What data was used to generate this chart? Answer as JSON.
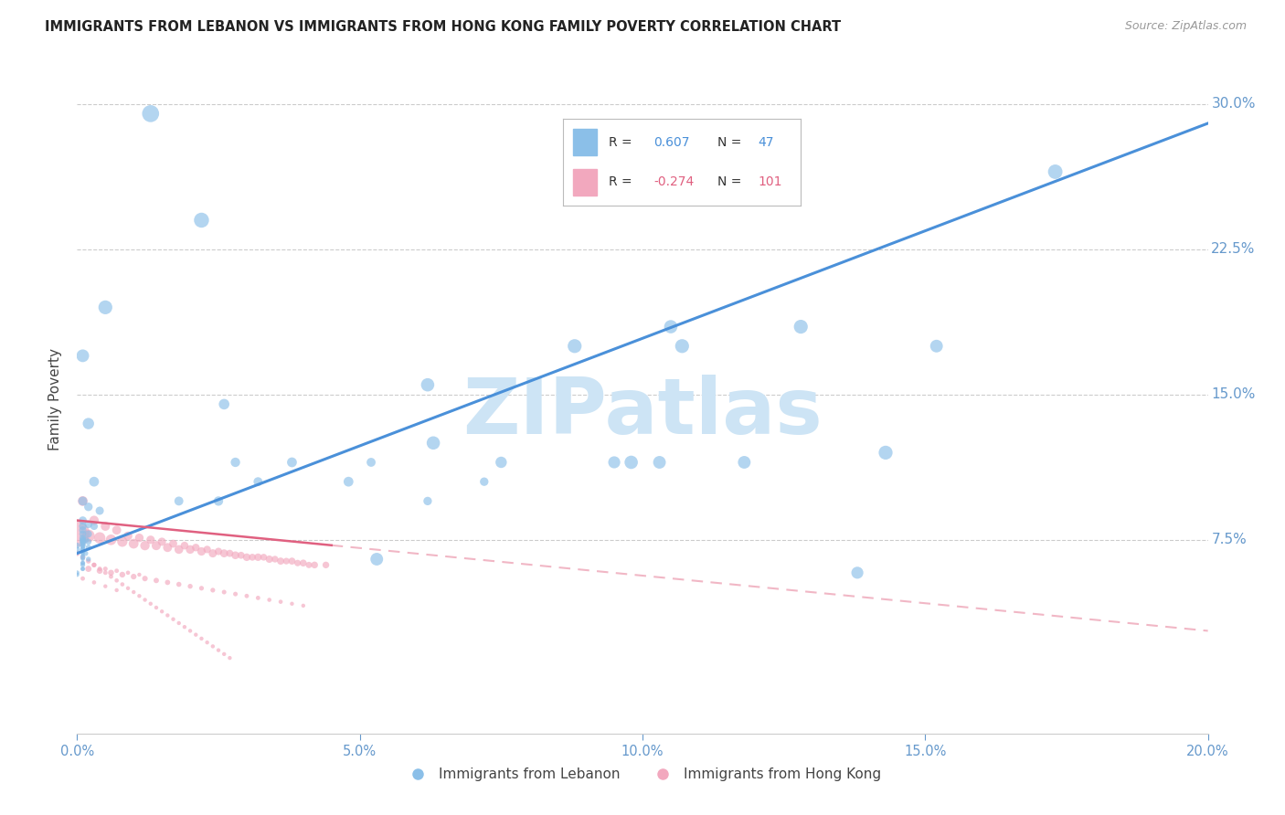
{
  "title": "IMMIGRANTS FROM LEBANON VS IMMIGRANTS FROM HONG KONG FAMILY POVERTY CORRELATION CHART",
  "source": "Source: ZipAtlas.com",
  "ylabel": "Family Poverty",
  "xlim": [
    0.0,
    0.2
  ],
  "ylim": [
    -0.025,
    0.32
  ],
  "legend_label1": "Immigrants from Lebanon",
  "legend_label2": "Immigrants from Hong Kong",
  "color_lebanon": "#8bbfe8",
  "color_hongkong": "#f2a8be",
  "color_line_lebanon": "#4a90d9",
  "color_line_hongkong": "#e06080",
  "watermark": "ZIPatlas",
  "watermark_color": "#cde4f5",
  "axis_label_color": "#6699cc",
  "ytick_vals": [
    0.075,
    0.15,
    0.225,
    0.3
  ],
  "ytick_labels": [
    "7.5%",
    "15.0%",
    "22.5%",
    "30.0%"
  ],
  "xtick_vals": [
    0.0,
    0.05,
    0.1,
    0.15,
    0.2
  ],
  "xtick_labels": [
    "0.0%",
    "5.0%",
    "10.0%",
    "15.0%",
    "20.0%"
  ],
  "blue_line": {
    "x0": 0.0,
    "y0": 0.068,
    "x1": 0.2,
    "y1": 0.29
  },
  "pink_line": {
    "x0": 0.0,
    "y0": 0.085,
    "x1": 0.2,
    "y1": 0.028
  },
  "pink_line_solid_end": 0.045,
  "lebanon_points": {
    "x": [
      0.013,
      0.022,
      0.005,
      0.001,
      0.002,
      0.003,
      0.001,
      0.002,
      0.004,
      0.001,
      0.002,
      0.001,
      0.003,
      0.001,
      0.002,
      0.001,
      0.001,
      0.001,
      0.0015,
      0.001,
      0.002,
      0.001,
      0.0,
      0.001,
      0.002,
      0.001,
      0.0,
      0.001,
      0.0015,
      0.001,
      0.002,
      0.001,
      0.001,
      0.001,
      0.0,
      0.0,
      0.001,
      0.001,
      0.001,
      0.001,
      0.001,
      0.001,
      0.001,
      0.001,
      0.001,
      0.001,
      0.001
    ],
    "y": [
      0.295,
      0.24,
      0.195,
      0.17,
      0.135,
      0.105,
      0.095,
      0.092,
      0.09,
      0.085,
      0.083,
      0.082,
      0.082,
      0.08,
      0.078,
      0.078,
      0.076,
      0.075,
      0.075,
      0.074,
      0.074,
      0.073,
      0.072,
      0.072,
      0.071,
      0.07,
      0.07,
      0.069,
      0.068,
      0.066,
      0.065,
      0.063,
      0.062,
      0.06,
      0.058,
      0.057,
      0.075,
      0.074,
      0.073,
      0.072,
      0.071,
      0.07,
      0.068,
      0.067,
      0.065,
      0.063,
      0.06
    ],
    "sizes": [
      180,
      140,
      120,
      100,
      80,
      60,
      50,
      45,
      42,
      40,
      38,
      36,
      35,
      34,
      32,
      30,
      28,
      27,
      26,
      25,
      24,
      23,
      22,
      21,
      20,
      20,
      19,
      18,
      17,
      16,
      15,
      14,
      14,
      13,
      13,
      12,
      14,
      13,
      12,
      11,
      11,
      10,
      10,
      10,
      10,
      10,
      10
    ]
  },
  "lebanon_isolated": {
    "x": [
      0.088,
      0.107,
      0.062,
      0.103,
      0.128,
      0.098,
      0.143,
      0.173,
      0.063,
      0.053,
      0.138,
      0.105,
      0.118,
      0.152,
      0.095,
      0.075,
      0.026,
      0.038,
      0.048,
      0.025,
      0.028,
      0.032,
      0.018,
      0.052,
      0.062,
      0.072
    ],
    "y": [
      0.175,
      0.175,
      0.155,
      0.115,
      0.185,
      0.115,
      0.12,
      0.265,
      0.125,
      0.065,
      0.058,
      0.185,
      0.115,
      0.175,
      0.115,
      0.115,
      0.145,
      0.115,
      0.105,
      0.095,
      0.115,
      0.105,
      0.095,
      0.115,
      0.095,
      0.105
    ],
    "sizes": [
      120,
      120,
      110,
      100,
      120,
      110,
      120,
      130,
      110,
      100,
      90,
      110,
      100,
      100,
      90,
      80,
      70,
      60,
      60,
      55,
      55,
      50,
      50,
      50,
      45,
      45
    ]
  },
  "hongkong_points": {
    "x": [
      0.0,
      0.002,
      0.004,
      0.006,
      0.008,
      0.01,
      0.012,
      0.014,
      0.016,
      0.018,
      0.02,
      0.022,
      0.024,
      0.026,
      0.028,
      0.03,
      0.032,
      0.034,
      0.036,
      0.038,
      0.04,
      0.042,
      0.044,
      0.001,
      0.003,
      0.005,
      0.007,
      0.009,
      0.011,
      0.013,
      0.015,
      0.017,
      0.019,
      0.021,
      0.023,
      0.025,
      0.027,
      0.029,
      0.031,
      0.033,
      0.035,
      0.037,
      0.039,
      0.041,
      0.002,
      0.004,
      0.006,
      0.008,
      0.01,
      0.012,
      0.014,
      0.016,
      0.018,
      0.02,
      0.022,
      0.024,
      0.026,
      0.028,
      0.03,
      0.032,
      0.034,
      0.036,
      0.038,
      0.04,
      0.003,
      0.005,
      0.007,
      0.009,
      0.011,
      0.001,
      0.003,
      0.005,
      0.007,
      0.0,
      0.001,
      0.002,
      0.003,
      0.004,
      0.005,
      0.006,
      0.007,
      0.008,
      0.009,
      0.01,
      0.011,
      0.012,
      0.013,
      0.014,
      0.015,
      0.016,
      0.017,
      0.018,
      0.019,
      0.02,
      0.021,
      0.022,
      0.023,
      0.024,
      0.025,
      0.026,
      0.027
    ],
    "y": [
      0.078,
      0.077,
      0.076,
      0.075,
      0.074,
      0.073,
      0.072,
      0.072,
      0.071,
      0.07,
      0.07,
      0.069,
      0.068,
      0.068,
      0.067,
      0.066,
      0.066,
      0.065,
      0.064,
      0.064,
      0.063,
      0.062,
      0.062,
      0.095,
      0.085,
      0.082,
      0.08,
      0.077,
      0.076,
      0.075,
      0.074,
      0.073,
      0.072,
      0.071,
      0.07,
      0.069,
      0.068,
      0.067,
      0.066,
      0.066,
      0.065,
      0.064,
      0.063,
      0.062,
      0.06,
      0.059,
      0.058,
      0.057,
      0.056,
      0.055,
      0.054,
      0.053,
      0.052,
      0.051,
      0.05,
      0.049,
      0.048,
      0.047,
      0.046,
      0.045,
      0.044,
      0.043,
      0.042,
      0.041,
      0.062,
      0.06,
      0.059,
      0.058,
      0.057,
      0.055,
      0.053,
      0.051,
      0.049,
      0.068,
      0.066,
      0.064,
      0.062,
      0.06,
      0.058,
      0.056,
      0.054,
      0.052,
      0.05,
      0.048,
      0.046,
      0.044,
      0.042,
      0.04,
      0.038,
      0.036,
      0.034,
      0.032,
      0.03,
      0.028,
      0.026,
      0.024,
      0.022,
      0.02,
      0.018,
      0.016,
      0.014
    ],
    "sizes": [
      400,
      100,
      80,
      70,
      65,
      60,
      55,
      52,
      50,
      48,
      46,
      44,
      42,
      40,
      38,
      36,
      35,
      34,
      32,
      31,
      30,
      29,
      28,
      60,
      55,
      52,
      50,
      48,
      46,
      44,
      42,
      40,
      38,
      36,
      35,
      34,
      32,
      31,
      30,
      29,
      28,
      27,
      26,
      25,
      24,
      23,
      22,
      21,
      20,
      19,
      18,
      17,
      16,
      15,
      14,
      14,
      13,
      13,
      12,
      12,
      11,
      11,
      10,
      10,
      14,
      13,
      12,
      11,
      10,
      12,
      11,
      10,
      10,
      18,
      16,
      15,
      14,
      13,
      12,
      12,
      11,
      11,
      10,
      10,
      10,
      10,
      10,
      10,
      10,
      10,
      10,
      10,
      10,
      10,
      10,
      10,
      10,
      10,
      10,
      10,
      10
    ]
  }
}
